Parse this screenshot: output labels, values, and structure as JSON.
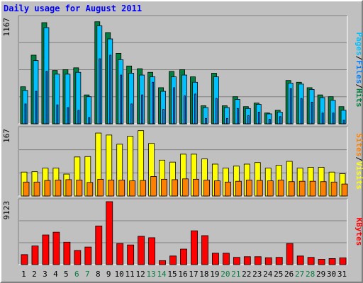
{
  "header": {
    "title": "Daily usage for August 2011"
  },
  "colors": {
    "hits": "#008040",
    "files": "#0080ff",
    "pages": "#00c0ff",
    "visits": "#ffff00",
    "sites": "#ff8000",
    "kbytes": "#ff0000",
    "panel_bg": "#c0c0c0",
    "weekday": "#000000",
    "weekend": "#008040"
  },
  "chart_data": [
    {
      "type": "bar",
      "panel": "top",
      "ymax_label": "1167",
      "ylim": [
        0,
        1167
      ],
      "legend": [
        "Pages",
        "Files",
        "Hits"
      ],
      "categories": [
        "1",
        "2",
        "3",
        "4",
        "5",
        "6",
        "7",
        "8",
        "9",
        "10",
        "11",
        "12",
        "13",
        "14",
        "15",
        "16",
        "17",
        "18",
        "19",
        "20",
        "21",
        "22",
        "23",
        "24",
        "25",
        "26",
        "27",
        "28",
        "29",
        "30",
        "31"
      ],
      "weekend_days": [
        "6",
        "7",
        "13",
        "14",
        "20",
        "21",
        "27",
        "28"
      ],
      "series": [
        {
          "name": "Hits",
          "values": [
            410,
            760,
            1120,
            590,
            600,
            620,
            320,
            1130,
            1010,
            780,
            640,
            610,
            570,
            400,
            580,
            600,
            520,
            200,
            560,
            200,
            300,
            190,
            230,
            120,
            150,
            480,
            460,
            400,
            320,
            300,
            190
          ]
        },
        {
          "name": "Files",
          "values": [
            370,
            700,
            1065,
            550,
            550,
            570,
            300,
            1085,
            940,
            710,
            560,
            540,
            520,
            360,
            520,
            540,
            460,
            180,
            520,
            180,
            270,
            170,
            215,
            110,
            130,
            450,
            440,
            380,
            290,
            260,
            150
          ]
        },
        {
          "name": "Pages",
          "values": [
            220,
            360,
            580,
            210,
            180,
            150,
            70,
            720,
            760,
            540,
            220,
            320,
            460,
            160,
            400,
            310,
            330,
            60,
            280,
            60,
            170,
            90,
            130,
            50,
            80,
            390,
            280,
            240,
            120,
            120,
            40
          ]
        }
      ]
    },
    {
      "type": "bar",
      "panel": "middle",
      "ymax_label": "167",
      "ylim": [
        0,
        167
      ],
      "legend": [
        "Sites",
        "Visits"
      ],
      "categories": [
        "1",
        "2",
        "3",
        "4",
        "5",
        "6",
        "7",
        "8",
        "9",
        "10",
        "11",
        "12",
        "13",
        "14",
        "15",
        "16",
        "17",
        "18",
        "19",
        "20",
        "21",
        "22",
        "23",
        "24",
        "25",
        "26",
        "27",
        "28",
        "29",
        "30",
        "31"
      ],
      "series": [
        {
          "name": "Visits",
          "values": [
            60,
            61,
            70,
            70,
            55,
            98,
            99,
            158,
            153,
            130,
            150,
            164,
            132,
            90,
            85,
            105,
            105,
            93,
            80,
            70,
            75,
            80,
            84,
            70,
            77,
            87,
            70,
            72,
            72,
            60,
            56
          ]
        },
        {
          "name": "Sites",
          "values": [
            35,
            35,
            39,
            40,
            41,
            40,
            34,
            42,
            40,
            40,
            38,
            39,
            49,
            42,
            41,
            43,
            42,
            40,
            38,
            35,
            37,
            40,
            39,
            38,
            40,
            36,
            37,
            37,
            36,
            35,
            30
          ]
        }
      ]
    },
    {
      "type": "bar",
      "panel": "bottom",
      "ymax_label": "9123",
      "ylim": [
        0,
        9123
      ],
      "legend": [
        "KBytes"
      ],
      "categories": [
        "1",
        "2",
        "3",
        "4",
        "5",
        "6",
        "7",
        "8",
        "9",
        "10",
        "11",
        "12",
        "13",
        "14",
        "15",
        "16",
        "17",
        "18",
        "19",
        "20",
        "21",
        "22",
        "23",
        "24",
        "25",
        "26",
        "27",
        "28",
        "29",
        "30",
        "31"
      ],
      "series": [
        {
          "name": "KBytes",
          "values": [
            1450,
            2700,
            4300,
            4700,
            3250,
            2050,
            2550,
            5600,
            9123,
            3050,
            2850,
            4100,
            3900,
            580,
            1250,
            2250,
            4900,
            4200,
            1650,
            1650,
            1050,
            1150,
            1150,
            1000,
            1050,
            3050,
            1250,
            1050,
            780,
            880,
            980
          ]
        }
      ]
    }
  ]
}
